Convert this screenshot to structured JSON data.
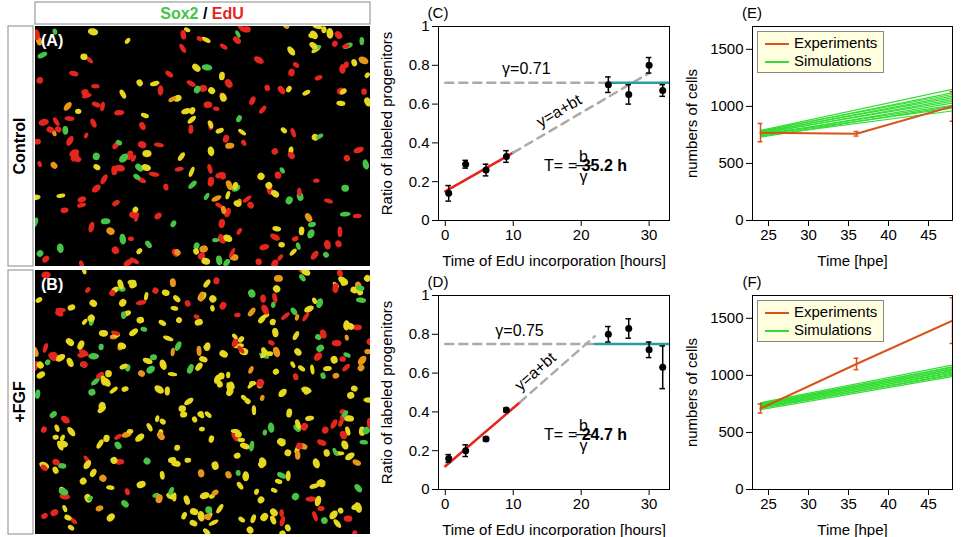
{
  "image_panels": {
    "stains": [
      {
        "text": "Sox2",
        "color": "#47c447"
      },
      {
        "text": "EdU",
        "color": "#e5261e"
      }
    ],
    "separator": "/",
    "panels": [
      {
        "letter": "(A)",
        "condition": "Control"
      },
      {
        "letter": "(B)",
        "condition": "+FGF"
      }
    ]
  },
  "chart_data": [
    {
      "type": "scatter",
      "panel": "(C)",
      "x_label": "Time of EdU incorporation [hours]",
      "y_label": "Ratio of labeled progenitors",
      "xlim": [
        -1,
        33
      ],
      "xticks": [
        0,
        10,
        20,
        30
      ],
      "ylim": [
        0,
        1
      ],
      "yticks": [
        0,
        0.2,
        0.4,
        0.6,
        0.8,
        1
      ],
      "points": {
        "color": "#000000",
        "marker": "circle",
        "x": [
          0.5,
          3,
          6,
          9,
          24,
          27,
          30,
          32
        ],
        "values": [
          0.14,
          0.29,
          0.26,
          0.33,
          0.7,
          0.65,
          0.8,
          0.67
        ],
        "errors": [
          0.04,
          0.02,
          0.03,
          0.03,
          0.04,
          0.05,
          0.04,
          0.03
        ]
      },
      "lines": [
        {
          "x": [
            0,
            10
          ],
          "values": [
            0.15,
            0.35
          ],
          "color": "#e8231c",
          "line_style": "solid"
        },
        {
          "x": [
            10,
            30
          ],
          "values": [
            0.35,
            0.76
          ],
          "color": "#aaaaaa",
          "line_style": "dashed"
        },
        {
          "x": [
            0,
            24
          ],
          "values": [
            0.71,
            0.71
          ],
          "color": "#aaaaaa",
          "line_style": "dashed"
        },
        {
          "x": [
            24,
            33
          ],
          "values": [
            0.71,
            0.71
          ],
          "color": "#2a9d9d",
          "line_style": "solid"
        }
      ],
      "annotations": {
        "gamma": "γ=0.71",
        "fit": "y=a+bt"
      },
      "formula": {
        "lhs": "T=",
        "numerator": "b",
        "denominator": "γ",
        "equals": "=",
        "result": "35.2 h"
      }
    },
    {
      "type": "scatter",
      "panel": "(D)",
      "x_label": "Time of EdU incorporation [hours]",
      "y_label": "Ratio of labeled progenitors",
      "xlim": [
        -1,
        33
      ],
      "xticks": [
        0,
        10,
        20,
        30
      ],
      "ylim": [
        0,
        1
      ],
      "yticks": [
        0,
        0.2,
        0.4,
        0.6,
        0.8,
        1
      ],
      "points": {
        "color": "#000000",
        "marker": "circle",
        "x": [
          0.5,
          3,
          6,
          9,
          24,
          27,
          30,
          32
        ],
        "values": [
          0.16,
          0.2,
          0.26,
          0.41,
          0.8,
          0.83,
          0.72,
          0.63
        ],
        "errors": [
          0.02,
          0.03,
          0.01,
          0.01,
          0.04,
          0.05,
          0.04,
          0.11
        ]
      },
      "lines": [
        {
          "x": [
            0,
            11
          ],
          "values": [
            0.12,
            0.45
          ],
          "color": "#e8231c",
          "line_style": "solid"
        },
        {
          "x": [
            11,
            22
          ],
          "values": [
            0.45,
            0.79
          ],
          "color": "#aaaaaa",
          "line_style": "dashed"
        },
        {
          "x": [
            0,
            22
          ],
          "values": [
            0.75,
            0.75
          ],
          "color": "#aaaaaa",
          "line_style": "dashed"
        },
        {
          "x": [
            22,
            33
          ],
          "values": [
            0.75,
            0.75
          ],
          "color": "#2a9d9d",
          "line_style": "solid"
        }
      ],
      "annotations": {
        "gamma": "γ=0.75",
        "fit": "y=a+bt"
      },
      "formula": {
        "lhs": "T=",
        "numerator": "b",
        "denominator": "γ",
        "equals": "=",
        "result": "24.7 h"
      }
    },
    {
      "type": "line",
      "panel": "(E)",
      "x_label": "Time [hpe]",
      "y_label": "numbers of cells",
      "xlim": [
        23,
        48
      ],
      "xticks": [
        25,
        30,
        35,
        40,
        45
      ],
      "ylim": [
        0,
        1700
      ],
      "yticks": [
        0,
        500,
        1000,
        1500
      ],
      "legend": "upper left",
      "series": [
        {
          "name": "Simulations",
          "color": "#33dd33",
          "marker": "none",
          "x": [
            24,
            48
          ],
          "runs": [
            [
              730,
              1000
            ],
            [
              745,
              1030
            ],
            [
              760,
              1060
            ],
            [
              770,
              1090
            ],
            [
              780,
              1120
            ],
            [
              790,
              1150
            ],
            [
              740,
              960
            ],
            [
              755,
              1010
            ],
            [
              765,
              1045
            ],
            [
              775,
              1075
            ],
            [
              785,
              1105
            ],
            [
              750,
              985
            ]
          ]
        },
        {
          "name": "Experiments",
          "color": "#d95319",
          "marker": "none",
          "x": [
            24,
            36,
            48
          ],
          "values": [
            770,
            760,
            1000
          ],
          "errors": [
            80,
            20,
            130
          ]
        }
      ]
    },
    {
      "type": "line",
      "panel": "(F)",
      "x_label": "Time [hpe]",
      "y_label": "numbers of cells",
      "xlim": [
        23,
        48
      ],
      "xticks": [
        25,
        30,
        35,
        40,
        45
      ],
      "ylim": [
        0,
        1700
      ],
      "yticks": [
        0,
        500,
        1000,
        1500
      ],
      "legend": "upper left",
      "series": [
        {
          "name": "Simulations",
          "color": "#33dd33",
          "marker": "none",
          "x": [
            24,
            48
          ],
          "runs": [
            [
              700,
              990
            ],
            [
              710,
              1010
            ],
            [
              720,
              1030
            ],
            [
              730,
              1045
            ],
            [
              740,
              1060
            ],
            [
              750,
              1075
            ],
            [
              760,
              1090
            ],
            [
              715,
              1000
            ],
            [
              725,
              1020
            ],
            [
              735,
              1040
            ],
            [
              745,
              1055
            ],
            [
              755,
              1070
            ]
          ]
        },
        {
          "name": "Experiments",
          "color": "#d95319",
          "marker": "none",
          "x": [
            24,
            36,
            48
          ],
          "values": [
            710,
            1100,
            1480
          ],
          "errors": [
            40,
            50,
            200
          ]
        }
      ]
    }
  ]
}
